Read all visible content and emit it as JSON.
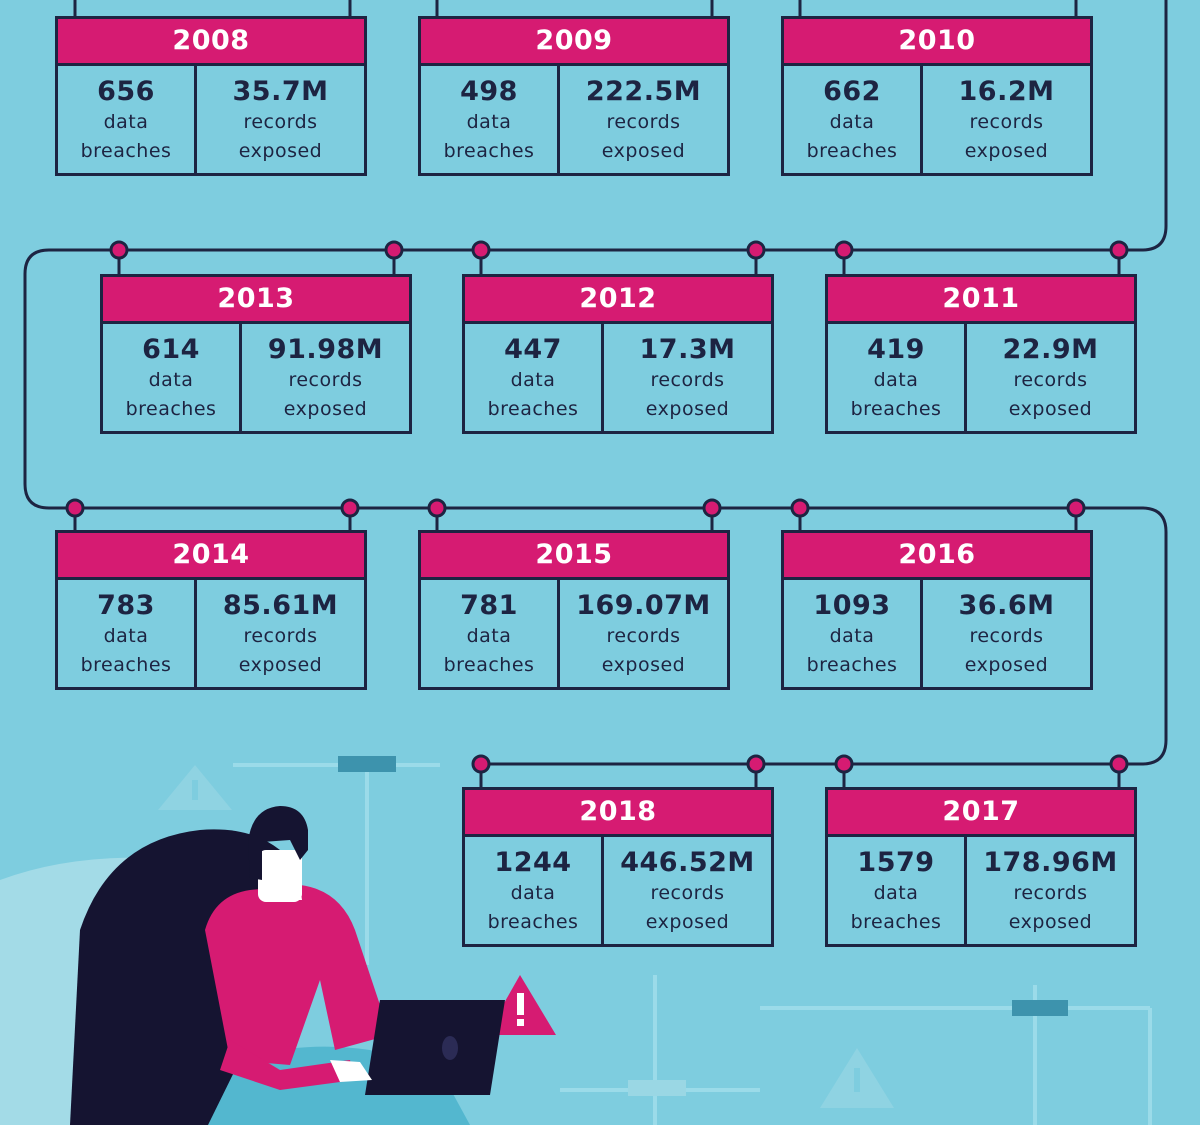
{
  "colors": {
    "background": "#7ecddf",
    "accent": "#d61b72",
    "outline": "#1d2442"
  },
  "cards": [
    {
      "year": "2008",
      "breaches": "656",
      "breaches_label_1": "data",
      "breaches_label_2": "breaches",
      "records": "35.7M",
      "records_label_1": "records",
      "records_label_2": "exposed"
    },
    {
      "year": "2009",
      "breaches": "498",
      "breaches_label_1": "data",
      "breaches_label_2": "breaches",
      "records": "222.5M",
      "records_label_1": "records",
      "records_label_2": "exposed"
    },
    {
      "year": "2010",
      "breaches": "662",
      "breaches_label_1": "data",
      "breaches_label_2": "breaches",
      "records": "16.2M",
      "records_label_1": "records",
      "records_label_2": "exposed"
    },
    {
      "year": "2013",
      "breaches": "614",
      "breaches_label_1": "data",
      "breaches_label_2": "breaches",
      "records": "91.98M",
      "records_label_1": "records",
      "records_label_2": "exposed"
    },
    {
      "year": "2012",
      "breaches": "447",
      "breaches_label_1": "data",
      "breaches_label_2": "breaches",
      "records": "17.3M",
      "records_label_1": "records",
      "records_label_2": "exposed"
    },
    {
      "year": "2011",
      "breaches": "419",
      "breaches_label_1": "data",
      "breaches_label_2": "breaches",
      "records": "22.9M",
      "records_label_1": "records",
      "records_label_2": "exposed"
    },
    {
      "year": "2014",
      "breaches": "783",
      "breaches_label_1": "data",
      "breaches_label_2": "breaches",
      "records": "85.61M",
      "records_label_1": "records",
      "records_label_2": "exposed"
    },
    {
      "year": "2015",
      "breaches": "781",
      "breaches_label_1": "data",
      "breaches_label_2": "breaches",
      "records": "169.07M",
      "records_label_1": "records",
      "records_label_2": "exposed"
    },
    {
      "year": "2016",
      "breaches": "1093",
      "breaches_label_1": "data",
      "breaches_label_2": "breaches",
      "records": "36.6M",
      "records_label_1": "records",
      "records_label_2": "exposed"
    },
    {
      "year": "2018",
      "breaches": "1244",
      "breaches_label_1": "data",
      "breaches_label_2": "breaches",
      "records": "446.52M",
      "records_label_1": "records",
      "records_label_2": "exposed"
    },
    {
      "year": "2017",
      "breaches": "1579",
      "breaches_label_1": "data",
      "breaches_label_2": "breaches",
      "records": "178.96M",
      "records_label_1": "records",
      "records_label_2": "exposed"
    }
  ],
  "illustration": {
    "figure": "person-on-laptop",
    "icons": [
      "warning-icon",
      "warning-icon",
      "warning-icon",
      "warning-icon"
    ]
  }
}
